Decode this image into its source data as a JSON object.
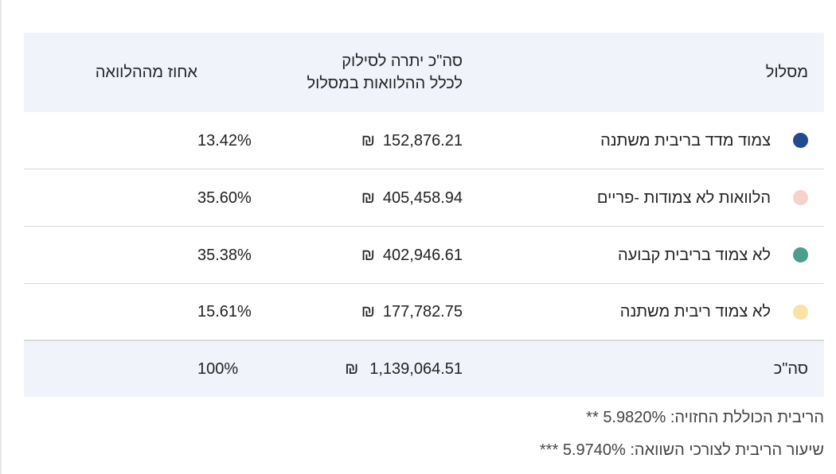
{
  "table": {
    "headers": {
      "track": "מסלול",
      "amount_line1": "סה\"כ יתרה לסילוק",
      "amount_line2": "לכלל ההלוואות במסלול",
      "percent": "אחוז מההלוואה"
    },
    "rows": [
      {
        "label": "צמוד מדד בריבית משתנה",
        "amount": "152,876.21",
        "currency": "₪",
        "percent": "13.42%",
        "color": "#214b8c"
      },
      {
        "label": "הלוואות לא צמודות -פריים",
        "amount": "405,458.94",
        "currency": "₪",
        "percent": "35.60%",
        "color": "#f6d3c8"
      },
      {
        "label": "לא צמוד בריבית קבועה",
        "amount": "402,946.61",
        "currency": "₪",
        "percent": "35.38%",
        "color": "#4a9e8a"
      },
      {
        "label": "לא צמוד ריבית משתנה",
        "amount": "177,782.75",
        "currency": "₪",
        "percent": "15.61%",
        "color": "#fbe3a6"
      }
    ],
    "total": {
      "label": "סה\"כ",
      "amount": "1,139,064.51",
      "currency": "₪",
      "percent": "100%"
    }
  },
  "footnotes": {
    "rate_label": "הריבית הכוללת החזויה:",
    "rate_value": "5.9820%",
    "rate_mark": "**",
    "compare_label": "שיעור הריבית לצורכי השוואה:",
    "compare_value": "5.9740%",
    "compare_mark": "***"
  }
}
